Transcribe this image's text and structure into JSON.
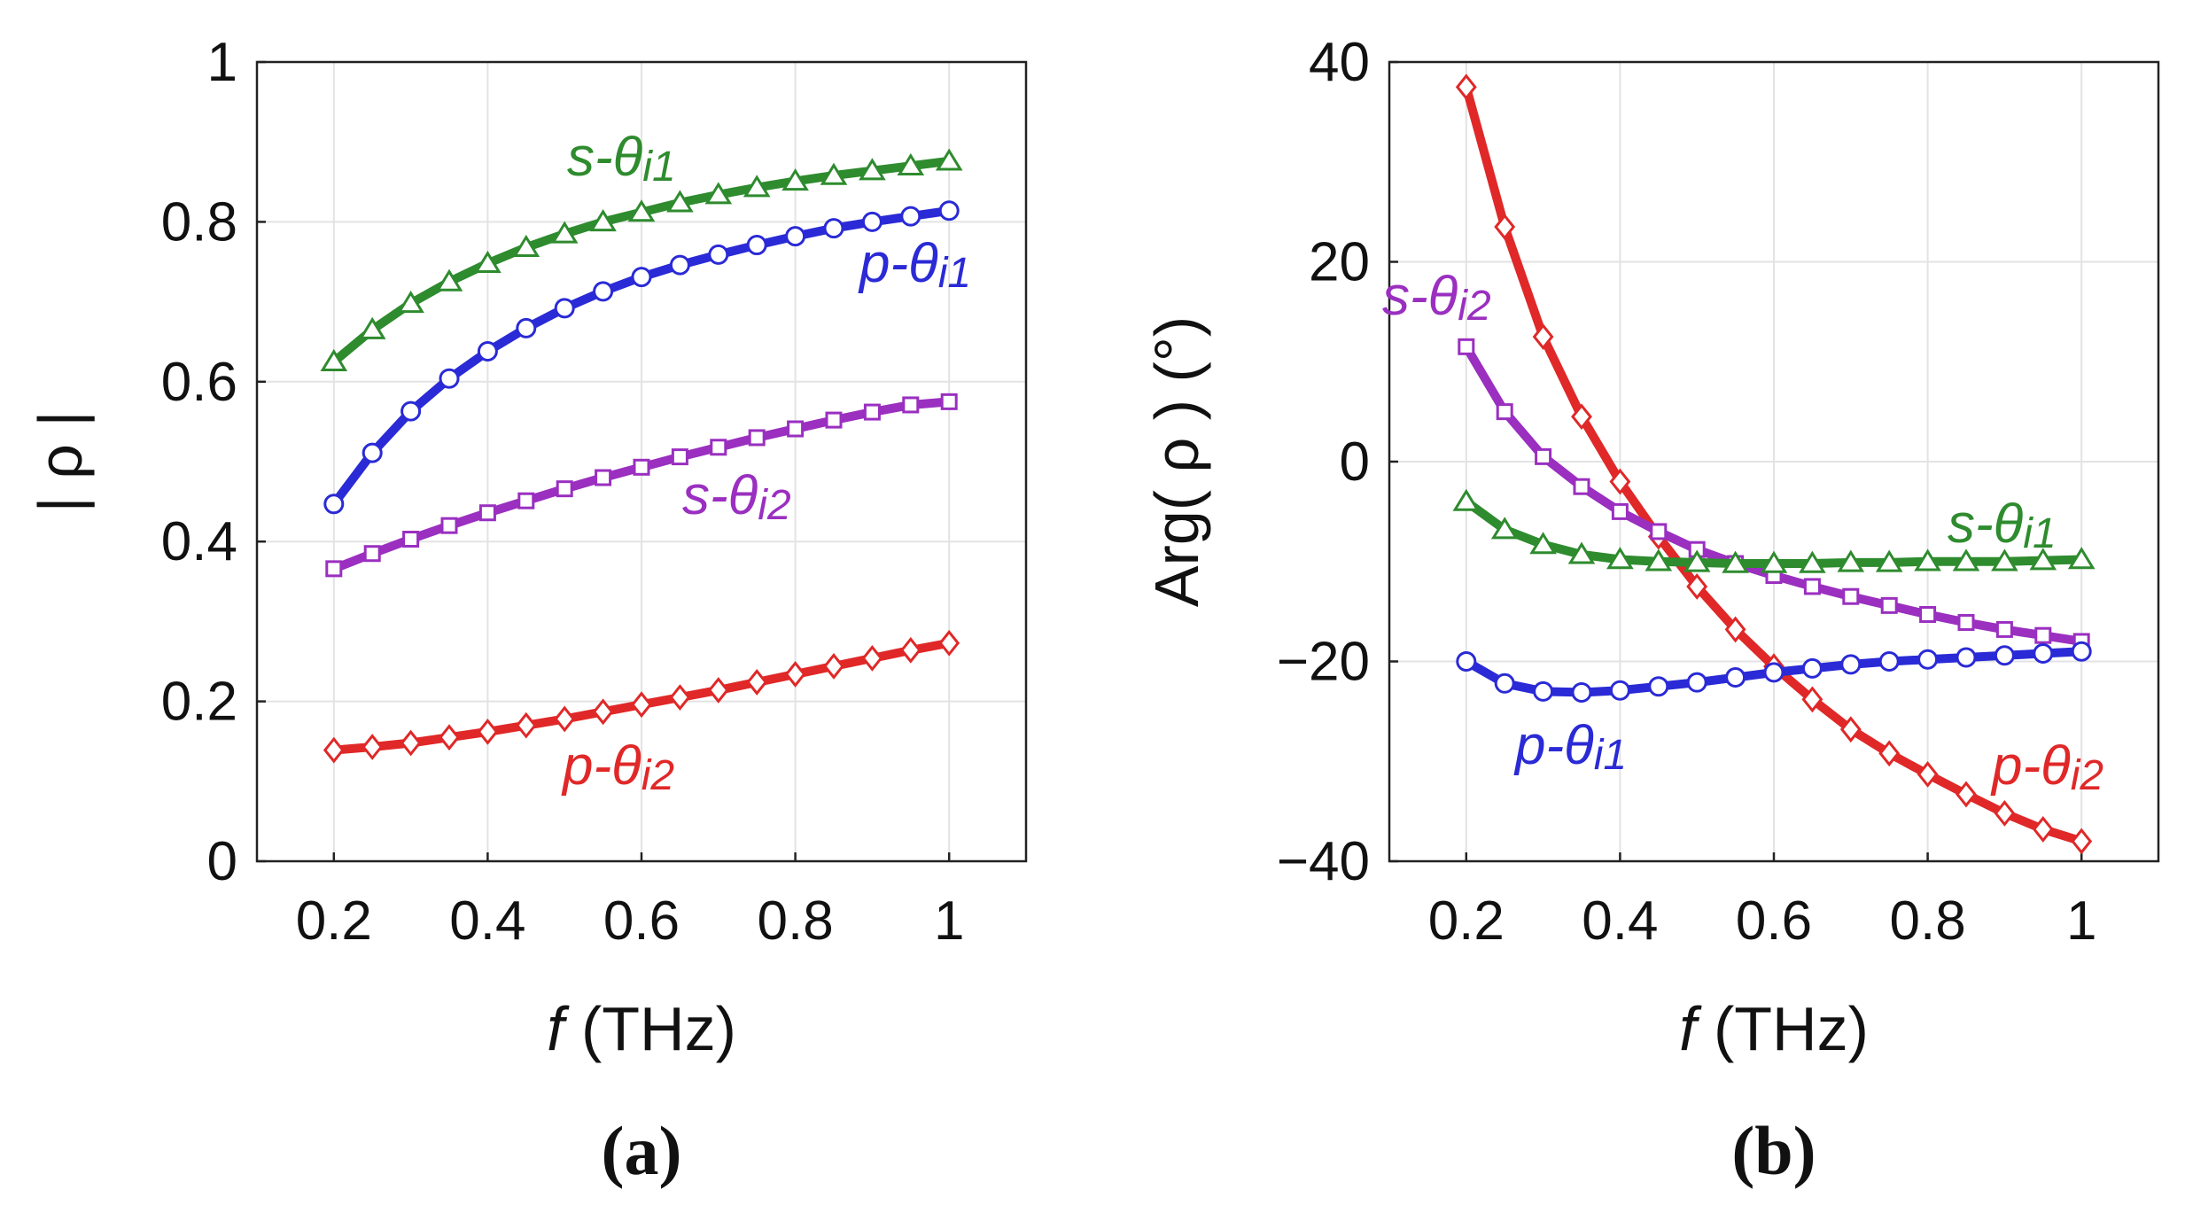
{
  "chart_data": [
    {
      "panel": "(a)",
      "type": "line",
      "xlabel_var": "f",
      "xlabel_unit": " (THz)",
      "ylabel": "| ρ |",
      "xlim": [
        0.1,
        1.1
      ],
      "ylim": [
        0,
        1
      ],
      "xticks": [
        0.2,
        0.4,
        0.6,
        0.8,
        1
      ],
      "xtick_labels": [
        "0.2",
        "0.4",
        "0.6",
        "0.8",
        "1"
      ],
      "yticks": [
        0,
        0.2,
        0.4,
        0.6,
        0.8,
        1
      ],
      "ytick_labels": [
        "0",
        "0.2",
        "0.4",
        "0.6",
        "0.8",
        "1"
      ],
      "grid": true,
      "x": [
        0.2,
        0.25,
        0.3,
        0.35,
        0.4,
        0.45,
        0.5,
        0.55,
        0.6,
        0.65,
        0.7,
        0.75,
        0.8,
        0.85,
        0.9,
        0.95,
        1.0
      ],
      "series": [
        {
          "name": "s-θi1",
          "color": "#2e8b2e",
          "marker": "triangle",
          "label_pos": "above the curve, mid-right",
          "values": [
            0.625,
            0.665,
            0.698,
            0.725,
            0.748,
            0.768,
            0.785,
            0.8,
            0.812,
            0.824,
            0.834,
            0.843,
            0.851,
            0.858,
            0.864,
            0.87,
            0.876
          ]
        },
        {
          "name": "p-θi1",
          "color": "#2a2ad6",
          "marker": "circle",
          "label_pos": "below the curve, right",
          "values": [
            0.447,
            0.511,
            0.563,
            0.604,
            0.638,
            0.667,
            0.692,
            0.713,
            0.731,
            0.746,
            0.759,
            0.771,
            0.782,
            0.792,
            0.8,
            0.807,
            0.814
          ]
        },
        {
          "name": "s-θi2",
          "color": "#9a2fc0",
          "marker": "square",
          "label_pos": "below the curve, mid-right",
          "values": [
            0.366,
            0.385,
            0.403,
            0.42,
            0.436,
            0.451,
            0.466,
            0.48,
            0.493,
            0.506,
            0.518,
            0.53,
            0.541,
            0.552,
            0.562,
            0.571,
            0.575
          ]
        },
        {
          "name": "p-θi2",
          "color": "#e02828",
          "marker": "diamond",
          "label_pos": "below the curve, middle",
          "values": [
            0.139,
            0.143,
            0.148,
            0.155,
            0.162,
            0.17,
            0.178,
            0.187,
            0.196,
            0.205,
            0.214,
            0.224,
            0.234,
            0.244,
            0.254,
            0.264,
            0.273
          ]
        }
      ]
    },
    {
      "panel": "(b)",
      "type": "line",
      "xlabel_var": "f",
      "xlabel_unit": " (THz)",
      "ylabel": "Arg( ρ ) (°)",
      "xlim": [
        0.1,
        1.1
      ],
      "ylim": [
        -40,
        40
      ],
      "xticks": [
        0.2,
        0.4,
        0.6,
        0.8,
        1
      ],
      "xtick_labels": [
        "0.2",
        "0.4",
        "0.6",
        "0.8",
        "1"
      ],
      "yticks": [
        -40,
        -20,
        0,
        20,
        40
      ],
      "ytick_labels": [
        "−40",
        "−20",
        "0",
        "20",
        "40"
      ],
      "grid": true,
      "x": [
        0.2,
        0.25,
        0.3,
        0.35,
        0.4,
        0.45,
        0.5,
        0.55,
        0.6,
        0.65,
        0.7,
        0.75,
        0.8,
        0.85,
        0.9,
        0.95,
        1.0
      ],
      "series": [
        {
          "name": "p-θi2",
          "color": "#e02828",
          "marker": "diamond",
          "label_pos": "below the curve, right",
          "values": [
            37.5,
            23.5,
            12.5,
            4.5,
            -2.0,
            -7.5,
            -12.5,
            -16.8,
            -20.5,
            -23.8,
            -26.8,
            -29.2,
            -31.3,
            -33.3,
            -35.2,
            -36.8,
            -38.0
          ]
        },
        {
          "name": "s-θi2",
          "color": "#9a2fc0",
          "marker": "square",
          "label_pos": "upper left",
          "values": [
            11.5,
            5.0,
            0.5,
            -2.5,
            -5.0,
            -7.0,
            -8.8,
            -10.2,
            -11.4,
            -12.5,
            -13.5,
            -14.4,
            -15.3,
            -16.1,
            -16.8,
            -17.4,
            -18.0
          ]
        },
        {
          "name": "s-θi1",
          "color": "#2e8b2e",
          "marker": "triangle",
          "label_pos": "above the curve, right",
          "values": [
            -4.0,
            -6.8,
            -8.3,
            -9.3,
            -9.8,
            -10.0,
            -10.1,
            -10.2,
            -10.2,
            -10.2,
            -10.1,
            -10.1,
            -10.0,
            -10.0,
            -10.0,
            -9.9,
            -9.8
          ]
        },
        {
          "name": "p-θi1",
          "color": "#2a2ad6",
          "marker": "circle",
          "label_pos": "below the curve, middle",
          "values": [
            -20.0,
            -22.2,
            -23.0,
            -23.1,
            -22.9,
            -22.5,
            -22.1,
            -21.6,
            -21.1,
            -20.7,
            -20.3,
            -20.0,
            -19.8,
            -19.6,
            -19.4,
            -19.2,
            -19.0
          ]
        }
      ]
    }
  ]
}
